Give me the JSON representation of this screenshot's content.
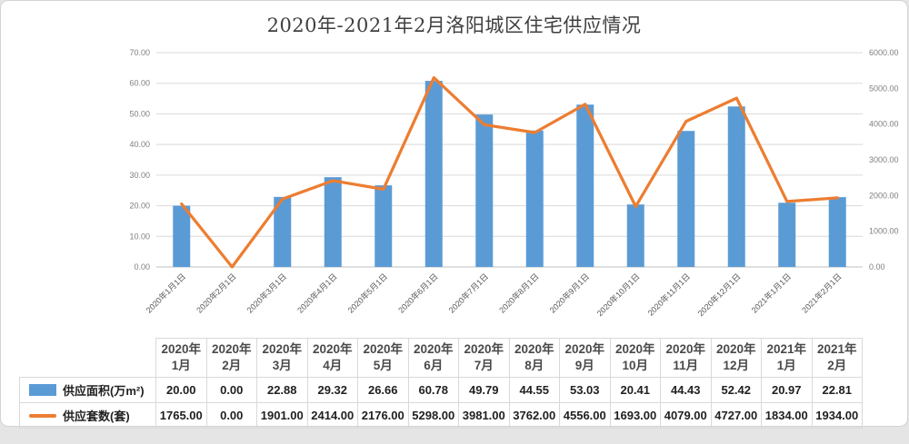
{
  "title": "2020年-2021年2月洛阳城区住宅供应情况",
  "chart_data": {
    "type": "combo",
    "title": "2020年-2021年2月洛阳城区住宅供应情况",
    "categories": [
      "2020年1月1日",
      "2020年2月1日",
      "2020年3月1日",
      "2020年4月1日",
      "2020年5月1日",
      "2020年6月1日",
      "2020年7月1日",
      "2020年8月1日",
      "2020年9月1日",
      "2020年10月1日",
      "2020年11月1日",
      "2020年12月1日",
      "2021年1月1日",
      "2021年2月1日"
    ],
    "series": [
      {
        "name": "供应面积(万m²)",
        "kind": "bar",
        "axis": "left",
        "color": "#5B9BD5",
        "values": [
          20.0,
          0.0,
          22.88,
          29.32,
          26.66,
          60.78,
          49.79,
          44.55,
          53.03,
          20.41,
          44.43,
          52.42,
          20.97,
          22.81
        ]
      },
      {
        "name": "供应套数(套)",
        "kind": "line",
        "axis": "right",
        "color": "#ED7D31",
        "values": [
          1765,
          0,
          1901,
          2414,
          2176,
          5298,
          3981,
          3762,
          4556,
          1693,
          4079,
          4727,
          1834,
          1934
        ]
      }
    ],
    "left_axis": {
      "min": 0,
      "max": 70,
      "tick_labels": [
        "0.00",
        "10.00",
        "20.00",
        "30.00",
        "40.00",
        "50.00",
        "60.00",
        "70.00"
      ]
    },
    "right_axis": {
      "min": 0,
      "max": 6000,
      "tick_labels": [
        "0.00",
        "1000.00",
        "2000.00",
        "3000.00",
        "4000.00",
        "5000.00",
        "6000.00"
      ]
    },
    "grid": true,
    "legend_position": "bottom-table"
  },
  "table": {
    "headers": [
      {
        "year": "2020年",
        "month": "1月"
      },
      {
        "year": "2020年",
        "month": "2月"
      },
      {
        "year": "2020年",
        "month": "3月"
      },
      {
        "year": "2020年",
        "month": "4月"
      },
      {
        "year": "2020年",
        "month": "5月"
      },
      {
        "year": "2020年",
        "month": "6月"
      },
      {
        "year": "2020年",
        "month": "7月"
      },
      {
        "year": "2020年",
        "month": "8月"
      },
      {
        "year": "2020年",
        "month": "9月"
      },
      {
        "year": "2020年",
        "month": "10月"
      },
      {
        "year": "2020年",
        "month": "11月"
      },
      {
        "year": "2020年",
        "month": "12月"
      },
      {
        "year": "2021年",
        "month": "1月"
      },
      {
        "year": "2021年",
        "month": "2月"
      }
    ],
    "rows": [
      {
        "label": "供应面积(万m²)",
        "swatch": "bar",
        "values": [
          "20.00",
          "0.00",
          "22.88",
          "29.32",
          "26.66",
          "60.78",
          "49.79",
          "44.55",
          "53.03",
          "20.41",
          "44.43",
          "52.42",
          "20.97",
          "22.81"
        ]
      },
      {
        "label": "供应套数(套)",
        "swatch": "line",
        "values": [
          "1765.00",
          "0.00",
          "1901.00",
          "2414.00",
          "2176.00",
          "5298.00",
          "3981.00",
          "3762.00",
          "4556.00",
          "1693.00",
          "4079.00",
          "4727.00",
          "1834.00",
          "1934.00"
        ]
      }
    ]
  },
  "colors": {
    "bar": "#5B9BD5",
    "line": "#ED7D31",
    "grid": "#d9d9d9",
    "axis_line": "#bfbfbf",
    "axis_text": "#7f7f7f",
    "x_label_text": "#595959"
  }
}
